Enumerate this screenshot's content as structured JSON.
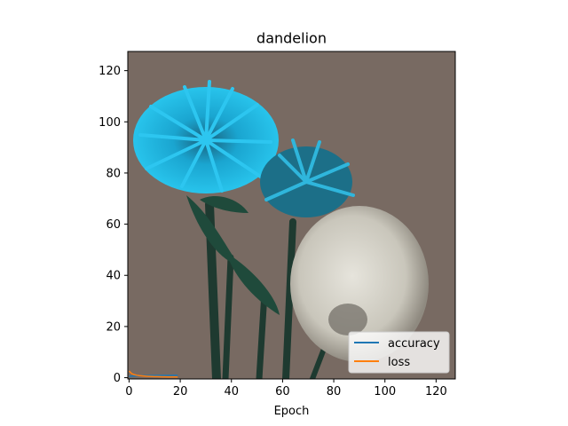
{
  "chart_data": {
    "type": "line",
    "title": "dandelion",
    "xlabel": "Epoch",
    "ylabel": "",
    "xlim": [
      -0.5,
      127.5
    ],
    "ylim": [
      127.5,
      -0.5
    ],
    "y_inverted": true,
    "xticks": [
      0,
      20,
      40,
      60,
      80,
      100,
      120
    ],
    "yticks": [
      0,
      20,
      40,
      60,
      80,
      100,
      120
    ],
    "background": "photo of dandelion flowers (blue-tinted blossoms and a white seed head) on a brown background",
    "legend_position": "lower-right",
    "series": [
      {
        "name": "accuracy",
        "color": "#1f77b4",
        "x": [
          0,
          1,
          2,
          3,
          4,
          5,
          6,
          7,
          8,
          9,
          10,
          11,
          12,
          13,
          14,
          15,
          16,
          17,
          18,
          19
        ],
        "y": [
          0.45,
          0.6,
          0.68,
          0.72,
          0.75,
          0.78,
          0.8,
          0.82,
          0.84,
          0.85,
          0.86,
          0.87,
          0.88,
          0.89,
          0.9,
          0.9,
          0.91,
          0.92,
          0.92,
          0.93
        ]
      },
      {
        "name": "loss",
        "color": "#ff7f0e",
        "x": [
          0,
          1,
          2,
          3,
          4,
          5,
          6,
          7,
          8,
          9,
          10,
          11,
          12,
          13,
          14,
          15,
          16,
          17,
          18,
          19
        ],
        "y": [
          2.6,
          1.6,
          1.2,
          0.95,
          0.8,
          0.7,
          0.62,
          0.55,
          0.5,
          0.45,
          0.42,
          0.39,
          0.36,
          0.34,
          0.32,
          0.3,
          0.28,
          0.27,
          0.26,
          0.25
        ]
      }
    ]
  }
}
